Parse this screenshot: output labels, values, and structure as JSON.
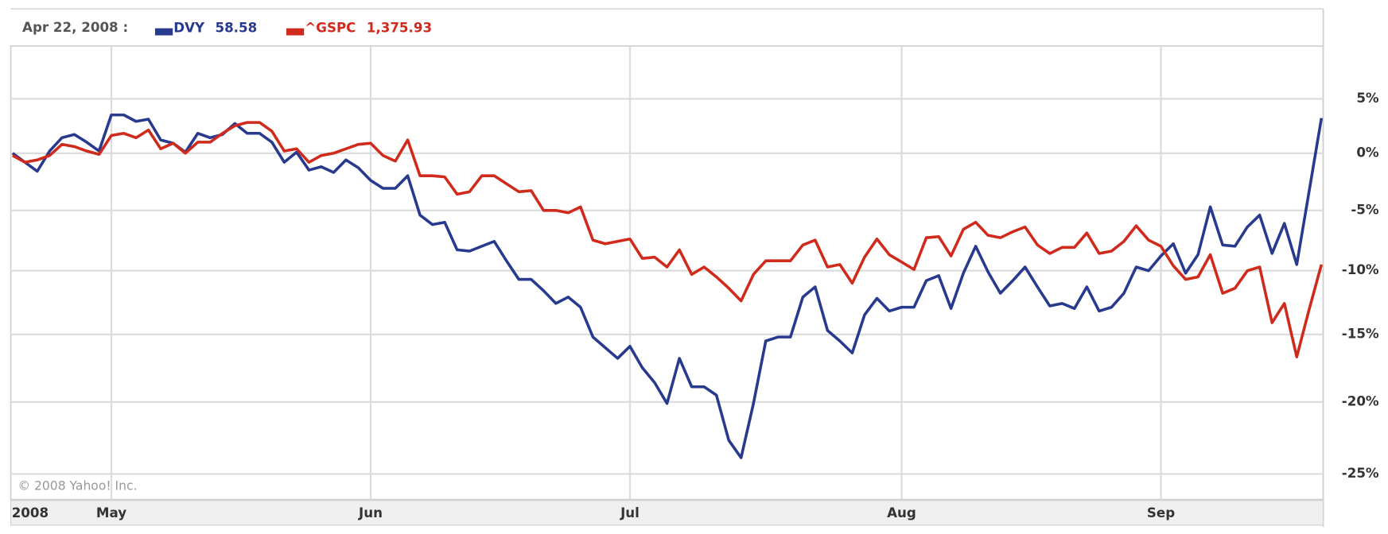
{
  "chart_data": {
    "type": "line",
    "header_date": "Apr 22, 2008 :",
    "credit": "© 2008 Yahoo! Inc.",
    "log_scale": true,
    "grid": true,
    "xlim": [
      0,
      106
    ],
    "xticks": [
      {
        "value": 0,
        "label": "2008"
      },
      {
        "value": 8,
        "label": "May"
      },
      {
        "value": 29,
        "label": "Jun"
      },
      {
        "value": 50,
        "label": "Jul"
      },
      {
        "value": 72,
        "label": "Aug"
      },
      {
        "value": 93,
        "label": "Sep"
      }
    ],
    "ylim": [
      -26.7,
      10.1
    ],
    "yticks": [
      {
        "value": 5,
        "label": "5%"
      },
      {
        "value": 0,
        "label": "0%"
      },
      {
        "value": -5,
        "label": "-5%"
      },
      {
        "value": -10,
        "label": "-10%"
      },
      {
        "value": -15,
        "label": "-15%"
      },
      {
        "value": -20,
        "label": "-20%"
      },
      {
        "value": -25,
        "label": "-25%"
      }
    ],
    "series": [
      {
        "name": "DVY",
        "quote": "58.58",
        "color": "#283a8e",
        "values": [
          0,
          -0.8,
          -1.6,
          0.2,
          1.4,
          1.7,
          1.0,
          0.2,
          3.5,
          3.5,
          2.9,
          3.1,
          1.2,
          0.9,
          0.1,
          1.8,
          1.4,
          1.7,
          2.7,
          1.8,
          1.8,
          1.0,
          -0.8,
          0.1,
          -1.5,
          -1.2,
          -1.7,
          -0.6,
          -1.3,
          -2.4,
          -3.1,
          -3.1,
          -2.0,
          -5.4,
          -6.2,
          -6.0,
          -8.3,
          -8.4,
          -8.0,
          -7.6,
          -9.2,
          -10.7,
          -10.7,
          -11.6,
          -12.6,
          -12.1,
          -12.9,
          -15.2,
          -16.0,
          -16.8,
          -15.9,
          -17.5,
          -18.6,
          -20.1,
          -16.8,
          -18.9,
          -18.9,
          -19.5,
          -22.7,
          -23.9,
          -20.1,
          -15.5,
          -15.2,
          -15.2,
          -12.1,
          -11.3,
          -14.7,
          -15.5,
          -16.4,
          -13.5,
          -12.2,
          -13.2,
          -12.9,
          -12.9,
          -10.8,
          -10.4,
          -13.0,
          -10.2,
          -8.0,
          -10.1,
          -11.8,
          -10.8,
          -9.7,
          -11.3,
          -12.8,
          -12.6,
          -13.0,
          -11.3,
          -13.2,
          -12.9,
          -11.8,
          -9.7,
          -10.0,
          -8.8,
          -7.8,
          -10.2,
          -8.7,
          -4.7,
          -7.9,
          -8.0,
          -6.4,
          -5.4,
          -8.6,
          -6.1,
          -9.5,
          -3.4,
          3.2
        ]
      },
      {
        "name": "^GSPC",
        "quote": "1,375.93",
        "color": "#d02a1c",
        "values": [
          -0.2,
          -0.8,
          -0.6,
          -0.2,
          0.8,
          0.6,
          0.2,
          -0.1,
          1.6,
          1.8,
          1.4,
          2.1,
          0.4,
          0.9,
          0,
          1.0,
          1.0,
          1.8,
          2.5,
          2.8,
          2.8,
          2.0,
          0.2,
          0.4,
          -0.8,
          -0.2,
          0,
          0.4,
          0.8,
          0.9,
          -0.2,
          -0.7,
          1.2,
          -2.0,
          -2.0,
          -2.1,
          -3.6,
          -3.4,
          -2.0,
          -2.0,
          -2.7,
          -3.4,
          -3.3,
          -5.0,
          -5.0,
          -5.2,
          -4.7,
          -7.5,
          -7.8,
          -7.6,
          -7.4,
          -9.0,
          -8.9,
          -9.7,
          -8.3,
          -10.3,
          -9.7,
          -10.5,
          -11.4,
          -12.4,
          -10.3,
          -9.2,
          -9.2,
          -9.2,
          -7.9,
          -7.5,
          -9.7,
          -9.5,
          -11.0,
          -8.9,
          -7.4,
          -8.7,
          -9.3,
          -9.9,
          -7.3,
          -7.2,
          -8.8,
          -6.6,
          -6.0,
          -7.1,
          -7.3,
          -6.8,
          -6.4,
          -7.9,
          -8.6,
          -8.1,
          -8.1,
          -6.9,
          -8.6,
          -8.4,
          -7.6,
          -6.3,
          -7.5,
          -8.0,
          -9.6,
          -10.7,
          -10.5,
          -8.7,
          -11.8,
          -11.4,
          -10.0,
          -9.7,
          -14.1,
          -12.6,
          -16.7,
          -13.1,
          -9.5
        ]
      }
    ]
  }
}
